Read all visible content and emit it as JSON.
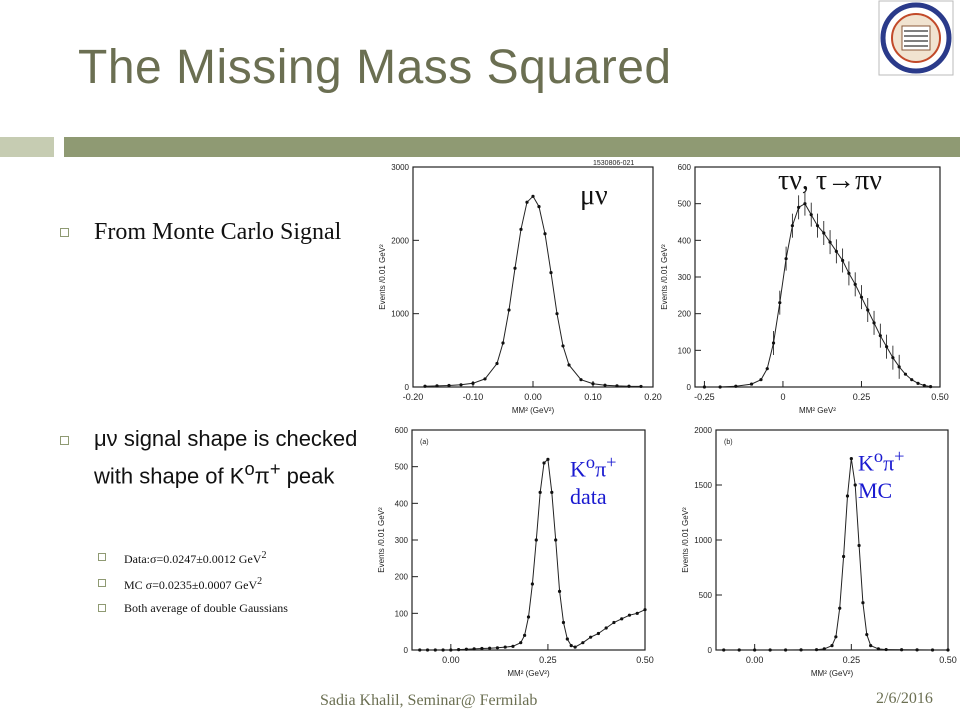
{
  "slide": {
    "title": "The Missing Mass Squared",
    "bullet1": "From Monte Carlo Signal",
    "bullet2_prefix": "μν",
    "bullet2": "signal shape is checked with shape of K",
    "bullet2_sup1": "o",
    "bullet2_pi": "π",
    "bullet2_sup2": "+",
    "bullet2_suffix": "peak",
    "sub_items": [
      "Data:σ=0.0247±0.0012 GeV",
      "MC   σ=0.0235±0.0007 GeV",
      "Both average of double Gaussians"
    ],
    "sub_sup": "2",
    "footer_left": "Sadia Khalil, Seminar@ Fermilab",
    "footer_right": "2/6/2016"
  },
  "annotations": {
    "munu": "μν",
    "taunu": "τν, τ→πν",
    "k0pi_data_1": "K",
    "k0pi_data_sup1": "o",
    "k0pi_data_pi": "π",
    "k0pi_data_sup2": "+",
    "k0pi_data_2": "data",
    "k0pi_mc_2": "MC"
  },
  "chart_data": [
    {
      "type": "line",
      "id": "mumu",
      "ylabel": "Events /0.01 GeV²",
      "xlabel": "MM² (GeV²)",
      "corner_tag": "1530806-021",
      "xlim": [
        -0.2,
        0.2
      ],
      "ylim": [
        0,
        3000
      ],
      "xticks": [
        "-0.20",
        "-0.10",
        "0.00",
        "0.10",
        "0.20"
      ],
      "yticks": [
        "0",
        "1000",
        "2000",
        "3000"
      ],
      "xtick_values": [
        -0.2,
        -0.1,
        0.0,
        0.1,
        0.2
      ],
      "ytick_values": [
        0,
        1000,
        2000,
        3000
      ],
      "x": [
        -0.18,
        -0.16,
        -0.14,
        -0.12,
        -0.1,
        -0.08,
        -0.06,
        -0.05,
        -0.04,
        -0.03,
        -0.02,
        -0.01,
        0.0,
        0.01,
        0.02,
        0.03,
        0.04,
        0.05,
        0.06,
        0.08,
        0.1,
        0.12,
        0.14,
        0.16,
        0.18
      ],
      "y": [
        10,
        15,
        20,
        30,
        50,
        110,
        320,
        600,
        1050,
        1620,
        2150,
        2520,
        2600,
        2460,
        2090,
        1560,
        1000,
        560,
        300,
        100,
        45,
        25,
        15,
        10,
        8
      ]
    },
    {
      "type": "line",
      "id": "taunu",
      "ylabel": "Events /0.01 GeV²",
      "xlabel": "MM² GeV²",
      "xlim": [
        -0.28,
        0.5
      ],
      "ylim": [
        0,
        600
      ],
      "xticks": [
        "-0.25",
        "0",
        "0.25",
        "0.50"
      ],
      "yticks": [
        "0",
        "100",
        "200",
        "300",
        "400",
        "500",
        "600"
      ],
      "xtick_values": [
        -0.25,
        0.0,
        0.25,
        0.5
      ],
      "ytick_values": [
        0,
        100,
        200,
        300,
        400,
        500,
        600
      ],
      "x": [
        -0.25,
        -0.2,
        -0.15,
        -0.1,
        -0.07,
        -0.05,
        -0.03,
        -0.01,
        0.01,
        0.03,
        0.05,
        0.07,
        0.09,
        0.11,
        0.13,
        0.15,
        0.17,
        0.19,
        0.21,
        0.23,
        0.25,
        0.27,
        0.29,
        0.31,
        0.33,
        0.35,
        0.37,
        0.39,
        0.41,
        0.43,
        0.45,
        0.47
      ],
      "y": [
        0,
        0,
        2,
        8,
        20,
        50,
        120,
        230,
        350,
        440,
        490,
        500,
        470,
        440,
        420,
        395,
        370,
        345,
        310,
        280,
        245,
        210,
        175,
        140,
        110,
        80,
        55,
        35,
        20,
        10,
        4,
        1
      ]
    },
    {
      "type": "line",
      "id": "k0pi_data",
      "ylabel": "Events /0.01 GeV²",
      "xlabel": "MM² (GeV²)",
      "corner_tag": "(a)",
      "xlim": [
        -0.1,
        0.5
      ],
      "ylim": [
        0,
        600
      ],
      "xticks": [
        "0.00",
        "0.25",
        "0.50"
      ],
      "yticks": [
        "0",
        "100",
        "200",
        "300",
        "400",
        "500",
        "600"
      ],
      "xtick_values": [
        0.0,
        0.25,
        0.5
      ],
      "ytick_values": [
        0,
        100,
        200,
        300,
        400,
        500,
        600
      ],
      "x": [
        -0.08,
        -0.06,
        -0.04,
        -0.02,
        0.0,
        0.02,
        0.04,
        0.06,
        0.08,
        0.1,
        0.12,
        0.14,
        0.16,
        0.18,
        0.19,
        0.2,
        0.21,
        0.22,
        0.23,
        0.24,
        0.25,
        0.26,
        0.27,
        0.28,
        0.29,
        0.3,
        0.31,
        0.32,
        0.34,
        0.36,
        0.38,
        0.4,
        0.42,
        0.44,
        0.46,
        0.48,
        0.5
      ],
      "y": [
        0,
        0,
        0,
        0,
        0,
        1,
        2,
        3,
        4,
        5,
        6,
        8,
        10,
        20,
        40,
        90,
        180,
        300,
        430,
        510,
        520,
        430,
        300,
        160,
        75,
        30,
        12,
        8,
        20,
        35,
        45,
        60,
        75,
        85,
        95,
        100,
        110
      ]
    },
    {
      "type": "line",
      "id": "k0pi_mc",
      "ylabel": "Events /0.01 GeV²",
      "xlabel": "MM² (GeV²)",
      "corner_tag": "(b)",
      "xlim": [
        -0.1,
        0.5
      ],
      "ylim": [
        0,
        2000
      ],
      "xticks": [
        "0.00",
        "0.25",
        "0.50"
      ],
      "yticks": [
        "0",
        "500",
        "1000",
        "1500",
        "2000"
      ],
      "xtick_values": [
        0.0,
        0.25,
        0.5
      ],
      "ytick_values": [
        0,
        500,
        1000,
        1500,
        2000
      ],
      "x": [
        -0.08,
        -0.04,
        0.0,
        0.04,
        0.08,
        0.12,
        0.16,
        0.18,
        0.2,
        0.21,
        0.22,
        0.23,
        0.24,
        0.25,
        0.26,
        0.27,
        0.28,
        0.29,
        0.3,
        0.32,
        0.34,
        0.38,
        0.42,
        0.46,
        0.5
      ],
      "y": [
        0,
        0,
        0,
        0,
        0,
        1,
        3,
        10,
        40,
        120,
        380,
        850,
        1400,
        1740,
        1500,
        950,
        430,
        140,
        40,
        10,
        4,
        2,
        1,
        0,
        0
      ]
    }
  ]
}
